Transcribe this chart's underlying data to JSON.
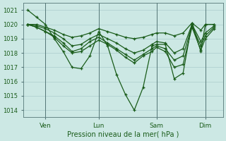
{
  "bg_color": "#cce8e4",
  "grid_color": "#aacccc",
  "line_color": "#1a5c1a",
  "ylabel_text": "Pression niveau de la mer( hPa )",
  "yticks": [
    1014,
    1015,
    1016,
    1017,
    1018,
    1019,
    1020,
    1021
  ],
  "ylim": [
    1013.5,
    1021.5
  ],
  "xlim": [
    -2,
    88
  ],
  "xtick_positions": [
    8,
    32,
    58,
    80
  ],
  "xtick_labels": [
    "Ven",
    "Lun",
    "Sam",
    "Dim"
  ],
  "vline_positions": [
    8,
    32,
    58,
    80
  ],
  "series": [
    {
      "x": [
        0,
        4,
        8,
        12,
        16,
        20,
        24,
        28,
        32,
        36,
        40,
        44,
        48,
        52,
        56,
        58,
        62,
        66,
        70,
        74,
        78,
        80,
        84
      ],
      "y": [
        1021.0,
        1020.5,
        1020.0,
        1019.0,
        1018.1,
        1017.0,
        1016.9,
        1017.8,
        1019.5,
        1018.5,
        1016.5,
        1015.1,
        1014.0,
        1015.6,
        1018.5,
        1018.6,
        1018.6,
        1016.2,
        1016.6,
        1020.1,
        1018.1,
        1020.0,
        1020.0
      ]
    },
    {
      "x": [
        0,
        4,
        8,
        12,
        16,
        20,
        24,
        28,
        32,
        36,
        40,
        44,
        48,
        52,
        56,
        58,
        62,
        66,
        70,
        74,
        78,
        80,
        84
      ],
      "y": [
        1020.0,
        1020.0,
        1019.8,
        1019.6,
        1019.3,
        1019.1,
        1019.2,
        1019.4,
        1019.7,
        1019.5,
        1019.3,
        1019.1,
        1019.0,
        1019.1,
        1019.3,
        1019.4,
        1019.4,
        1019.2,
        1019.4,
        1020.1,
        1019.6,
        1020.0,
        1020.0
      ]
    },
    {
      "x": [
        0,
        4,
        8,
        12,
        16,
        20,
        24,
        28,
        32,
        36,
        40,
        44,
        48,
        52,
        56,
        58,
        62,
        66,
        70,
        74,
        78,
        80,
        84
      ],
      "y": [
        1020.0,
        1019.9,
        1019.7,
        1019.4,
        1019.0,
        1018.5,
        1018.6,
        1019.0,
        1019.3,
        1019.0,
        1018.7,
        1018.3,
        1018.0,
        1018.2,
        1018.6,
        1018.8,
        1018.7,
        1018.0,
        1018.3,
        1020.0,
        1018.8,
        1019.4,
        1019.9
      ]
    },
    {
      "x": [
        0,
        4,
        8,
        12,
        16,
        20,
        24,
        28,
        32,
        36,
        40,
        44,
        48,
        52,
        56,
        58,
        62,
        66,
        70,
        74,
        78,
        80,
        84
      ],
      "y": [
        1020.0,
        1019.8,
        1019.5,
        1019.2,
        1018.7,
        1018.1,
        1018.3,
        1018.8,
        1019.1,
        1018.7,
        1018.3,
        1017.9,
        1017.5,
        1017.9,
        1018.3,
        1018.5,
        1018.3,
        1017.5,
        1017.8,
        1019.9,
        1018.5,
        1019.2,
        1019.8
      ]
    },
    {
      "x": [
        0,
        4,
        8,
        12,
        16,
        20,
        24,
        28,
        32,
        36,
        40,
        44,
        48,
        52,
        56,
        58,
        62,
        66,
        70,
        74,
        78,
        80,
        84
      ],
      "y": [
        1020.0,
        1019.8,
        1019.5,
        1019.1,
        1018.5,
        1018.0,
        1018.1,
        1018.5,
        1018.9,
        1018.6,
        1018.2,
        1017.7,
        1017.3,
        1017.8,
        1018.1,
        1018.4,
        1018.1,
        1017.0,
        1017.2,
        1019.8,
        1018.2,
        1019.0,
        1019.7
      ]
    }
  ]
}
